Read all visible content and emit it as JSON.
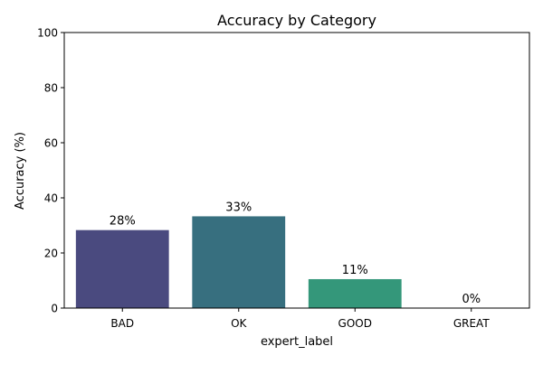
{
  "chart_data": {
    "type": "bar",
    "title": "Accuracy by Category",
    "xlabel": "expert_label",
    "ylabel": "Accuracy (%)",
    "categories": [
      "BAD",
      "OK",
      "GOOD",
      "GREAT"
    ],
    "values": [
      28.3,
      33.3,
      10.5,
      0
    ],
    "value_labels": [
      "28%",
      "33%",
      "11%",
      "0%"
    ],
    "colors": [
      "#4a4a7f",
      "#376f7f",
      "#34977a",
      "#5cc263"
    ],
    "ylim": [
      0,
      100
    ],
    "yticks": [
      0,
      20,
      40,
      60,
      80,
      100
    ],
    "grid": false,
    "legend": "none"
  }
}
